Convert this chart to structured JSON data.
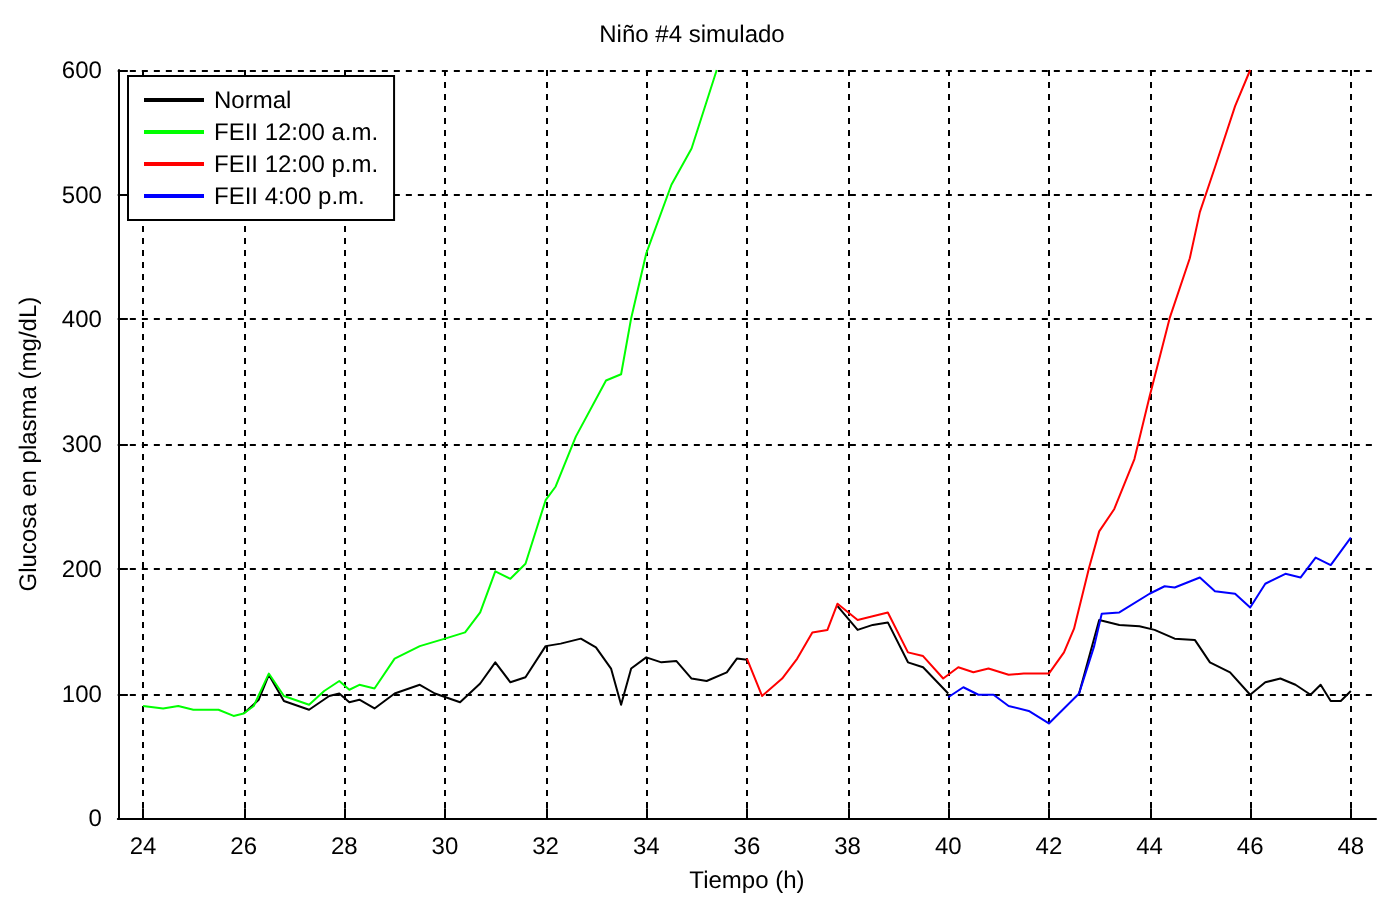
{
  "chart_data": {
    "type": "line",
    "title": "Niño #4 simulado",
    "xlabel": "Tiempo (h)",
    "ylabel": "Glucosa en plasma (mg/dL)",
    "xlim": [
      23.5,
      48.5
    ],
    "ylim": [
      0,
      600
    ],
    "xticks": [
      24,
      26,
      28,
      30,
      32,
      34,
      36,
      38,
      40,
      42,
      44,
      46,
      48
    ],
    "yticks": [
      0,
      100,
      200,
      300,
      400,
      500,
      600
    ],
    "grid": true,
    "legend": "top left",
    "marker": "none",
    "line_style": "solid",
    "series": [
      {
        "name": "Normal",
        "color": "#000000",
        "x": [
          26,
          26.3,
          26.5,
          26.8,
          27.3,
          27.7,
          27.9,
          28.1,
          28.3,
          28.6,
          29,
          29.5,
          29.8,
          30.3,
          30.7,
          31,
          31.3,
          31.6,
          32,
          32.3,
          32.7,
          33,
          33.3,
          33.5,
          33.7,
          34,
          34.3,
          34.6,
          34.9,
          35.2,
          35.6,
          35.8,
          36,
          36.3,
          37.8,
          38.2,
          38.5,
          38.8,
          39.2,
          39.5,
          40,
          40.3,
          42.6,
          43,
          43.4,
          43.8,
          44.1,
          44.5,
          44.9,
          45.2,
          45.6,
          46,
          46.3,
          46.6,
          46.9,
          47.2,
          47.4,
          47.6,
          47.8,
          48
        ],
        "values": [
          84,
          95,
          115,
          94,
          87,
          98,
          100,
          93,
          95,
          88,
          100,
          107,
          100,
          93,
          108,
          125,
          109,
          113,
          138,
          140,
          144,
          137,
          120,
          91,
          120,
          129,
          125,
          126,
          112,
          110,
          117,
          128,
          127,
          null,
          170,
          151,
          155,
          157,
          125,
          121,
          100,
          null,
          100,
          159,
          155,
          154,
          151,
          144,
          143,
          125,
          117,
          99,
          109,
          112,
          107,
          99,
          107,
          94,
          94,
          102
        ]
      },
      {
        "name": "FEII 12:00 a.m.",
        "color": "#00ff00",
        "x": [
          24,
          24.4,
          24.7,
          25,
          25.5,
          25.8,
          26,
          26.2,
          26.5,
          26.8,
          27.3,
          27.6,
          27.9,
          28.1,
          28.3,
          28.6,
          29,
          29.5,
          30,
          30.4,
          30.7,
          31,
          31.3,
          31.6,
          32,
          32.2,
          32.6,
          33.2,
          33.5,
          33.7,
          34,
          34.5,
          34.9,
          35.4
        ],
        "values": [
          90,
          88,
          90,
          87,
          87,
          82,
          84,
          90,
          116,
          98,
          91,
          102,
          110,
          103,
          107,
          104,
          128,
          138,
          144,
          149,
          165,
          198,
          192,
          204,
          255,
          266,
          306,
          351,
          356,
          401,
          453,
          508,
          537,
          600
        ]
      },
      {
        "name": "FEII 12:00 p.m.",
        "color": "#ff0000",
        "x": [
          36,
          36.3,
          36.7,
          37,
          37.3,
          37.6,
          37.8,
          38.2,
          38.5,
          38.8,
          39.2,
          39.5,
          39.9,
          40.2,
          40.5,
          40.8,
          41.2,
          41.5,
          42,
          42.3,
          42.5,
          42.8,
          43,
          43.3,
          43.7,
          44,
          44.4,
          44.8,
          45,
          45.3,
          45.7,
          46
        ],
        "values": [
          128,
          98,
          112,
          128,
          149,
          151,
          172,
          159,
          162,
          165,
          133,
          130,
          112,
          121,
          117,
          120,
          115,
          116,
          116,
          133,
          152,
          201,
          230,
          248,
          288,
          338,
          401,
          449,
          486,
          522,
          571,
          600
        ]
      },
      {
        "name": "FEII 4:00 p.m.",
        "color": "#0000ff",
        "x": [
          40,
          40.3,
          40.6,
          40.9,
          41.2,
          41.6,
          42,
          42.3,
          42.6,
          42.9,
          43.05,
          43.4,
          44,
          44.3,
          44.5,
          45,
          45.3,
          45.7,
          46,
          46.3,
          46.7,
          47,
          47.3,
          47.6,
          47.8,
          48
        ],
        "values": [
          97,
          105,
          99,
          99,
          90,
          86,
          76,
          88,
          100,
          138,
          164,
          165,
          180,
          186,
          185,
          193,
          182,
          180,
          169,
          188,
          196,
          193,
          209,
          203,
          214,
          225
        ]
      }
    ]
  }
}
